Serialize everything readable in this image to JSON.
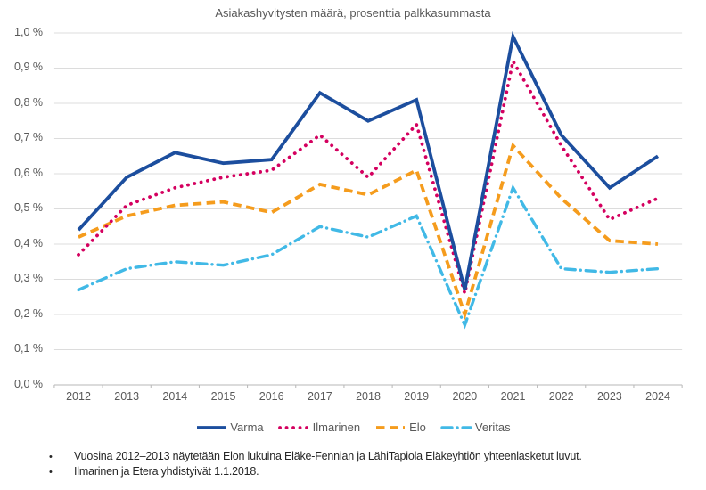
{
  "chart_data": {
    "type": "line",
    "title": "Asiakashyvitysten määrä, prosenttia palkkasummasta",
    "categories": [
      "2012",
      "2013",
      "2014",
      "2015",
      "2016",
      "2017",
      "2018",
      "2019",
      "2020",
      "2021",
      "2022",
      "2023",
      "2024"
    ],
    "y_axis": {
      "min": 0.0,
      "max": 1.0,
      "step": 0.1,
      "tick_labels_top_to_bottom": [
        "1,0 %",
        "0,9 %",
        "0,8 %",
        "0,7 %",
        "0,6 %",
        "0,5 %",
        "0,4 %",
        "0,3 %",
        "0,2 %",
        "0,1 %",
        "0,0 %"
      ]
    },
    "grid": "horizontal",
    "legend_position": "bottom",
    "series": [
      {
        "name": "Veritas",
        "color": "#41b9e6",
        "style": "dashdot",
        "values": [
          0.27,
          0.33,
          0.35,
          0.34,
          0.37,
          0.45,
          0.42,
          0.48,
          0.17,
          0.56,
          0.33,
          0.32,
          0.33
        ]
      },
      {
        "name": "Elo",
        "color": "#f59c1d",
        "style": "dashed",
        "values": [
          0.42,
          0.48,
          0.51,
          0.52,
          0.49,
          0.57,
          0.54,
          0.61,
          0.2,
          0.68,
          0.53,
          0.41,
          0.4
        ]
      },
      {
        "name": "Ilmarinen",
        "color": "#d4005f",
        "style": "dotted",
        "values": [
          0.37,
          0.51,
          0.56,
          0.59,
          0.61,
          0.71,
          0.59,
          0.74,
          0.26,
          0.92,
          0.68,
          0.47,
          0.53
        ]
      },
      {
        "name": "Varma",
        "color": "#1c4e9e",
        "style": "solid",
        "values": [
          0.44,
          0.59,
          0.66,
          0.63,
          0.64,
          0.83,
          0.75,
          0.81,
          0.27,
          0.99,
          0.71,
          0.56,
          0.65
        ]
      }
    ],
    "legend_order": [
      "Varma",
      "Ilmarinen",
      "Elo",
      "Veritas"
    ]
  },
  "footnotes": {
    "bullet": "•",
    "items": [
      "Vuosina 2012–2013 näytetään Elon lukuina Eläke-Fennian ja LähiTapiola Eläkeyhtiön yhteenlasketut luvut.",
      "Ilmarinen ja Etera yhdistyivät 1.1.2018."
    ]
  },
  "style_colors": {
    "gridline": "#dcdcdc",
    "axis": "#b7b7b7",
    "label_gray": "#595959"
  }
}
